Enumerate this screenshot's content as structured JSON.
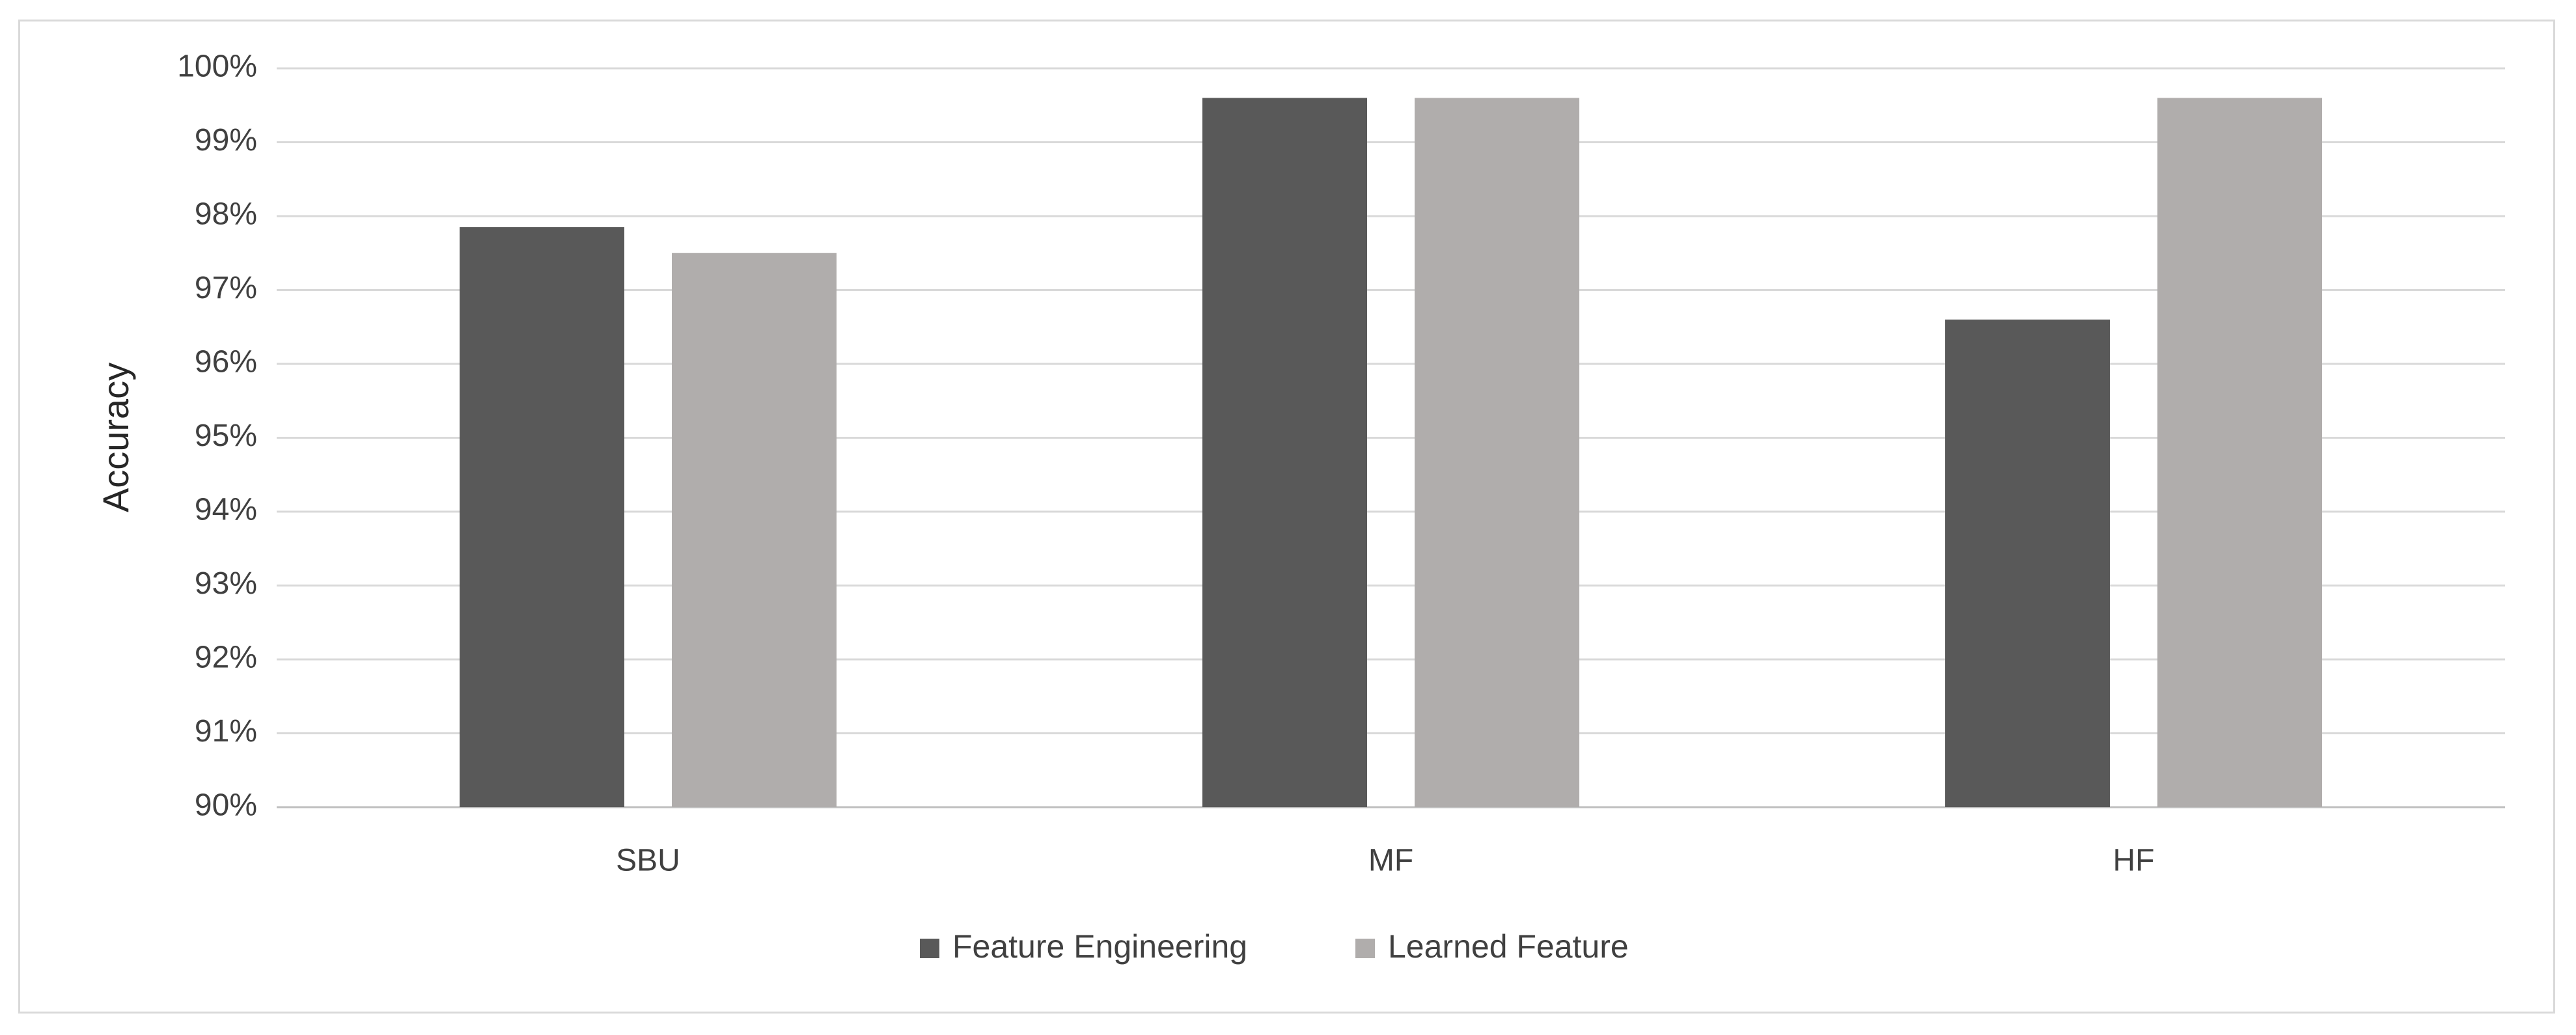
{
  "chart_data": {
    "type": "bar",
    "title": "",
    "xlabel": "",
    "ylabel": "Accuracy",
    "categories": [
      "SBU",
      "MF",
      "HF"
    ],
    "series": [
      {
        "name": "Feature Engineering",
        "color": "#595959",
        "values": [
          97.85,
          99.6,
          96.6
        ]
      },
      {
        "name": "Learned Feature",
        "color": "#b0adac",
        "values": [
          97.5,
          99.6,
          99.6
        ]
      }
    ],
    "ylim": [
      90,
      100
    ],
    "yticks": [
      "90%",
      "91%",
      "92%",
      "93%",
      "94%",
      "95%",
      "96%",
      "97%",
      "98%",
      "99%",
      "100%"
    ],
    "grid": true,
    "legend": "bottom-center"
  }
}
